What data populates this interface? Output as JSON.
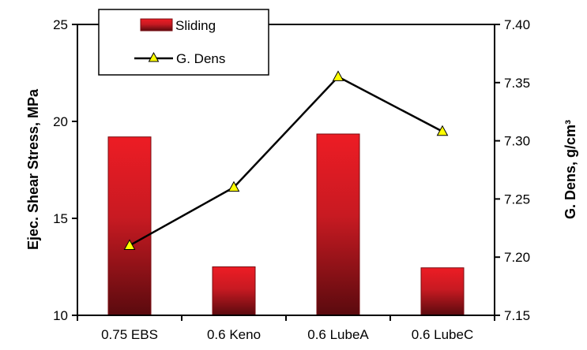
{
  "chart_data": {
    "type": "bar",
    "categories": [
      "0.75 EBS",
      "0.6 Keno",
      "0.6 LubeA",
      "0.6 LubeC"
    ],
    "series": [
      {
        "name": "Sliding",
        "kind": "bar",
        "axis": "left",
        "values": [
          19.2,
          12.5,
          19.35,
          12.45
        ],
        "color": "#e8202a"
      },
      {
        "name": "G. Dens",
        "kind": "line",
        "axis": "right",
        "marker": "triangle",
        "values": [
          7.21,
          7.26,
          7.355,
          7.308
        ],
        "color": "#000000",
        "marker_color": "#ffff00"
      }
    ],
    "ylabel": "Ejec. Shear Stress, MPa",
    "ylim": [
      10,
      25
    ],
    "yticks": [
      "10",
      "15",
      "20",
      "25"
    ],
    "y2label": "G. Dens, g/cm³",
    "y2lim": [
      7.15,
      7.4
    ],
    "y2ticks": [
      "7.15",
      "7.20",
      "7.25",
      "7.30",
      "7.35",
      "7.40"
    ],
    "legend_position": "top-left",
    "grid": false
  }
}
